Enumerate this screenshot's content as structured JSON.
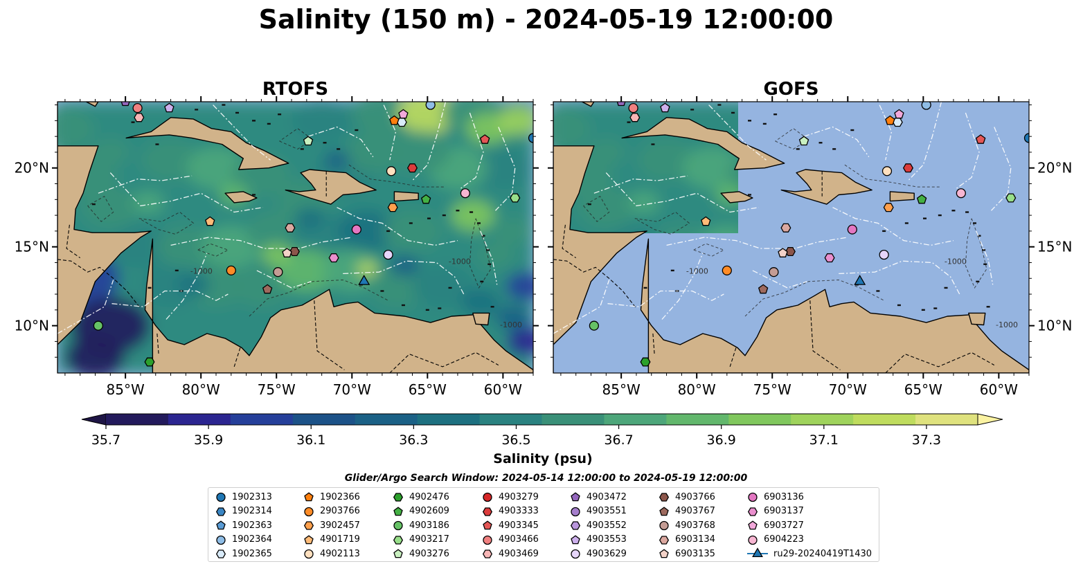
{
  "title": "Salinity (150 m) - 2024-05-19 12:00:00",
  "panels": [
    {
      "title": "RTOFS",
      "shows_field": true
    },
    {
      "title": "GOFS",
      "shows_field": "partial"
    }
  ],
  "map": {
    "lon_range": [
      -89.5,
      -58.0
    ],
    "lat_range": [
      7.0,
      24.2
    ],
    "lon_ticks": [
      {
        "value": -85,
        "label": "85°W"
      },
      {
        "value": -80,
        "label": "80°W"
      },
      {
        "value": -75,
        "label": "75°W"
      },
      {
        "value": -70,
        "label": "70°W"
      },
      {
        "value": -65,
        "label": "65°W"
      },
      {
        "value": -60,
        "label": "60°W"
      }
    ],
    "lat_ticks": [
      {
        "value": 10,
        "label": "10°N"
      },
      {
        "value": 15,
        "label": "15°N"
      },
      {
        "value": 20,
        "label": "20°N"
      }
    ],
    "contour_label": "-1000",
    "colors": {
      "ocean": "#95b4e0",
      "land": "#d1b38a",
      "eez": "#ffffff"
    }
  },
  "colorbar": {
    "label": "Salinity (psu)",
    "ticks": [
      "35.7",
      "35.9",
      "36.1",
      "36.3",
      "36.5",
      "36.7",
      "36.9",
      "37.1",
      "37.3"
    ],
    "min": 35.7,
    "max": 37.4,
    "colors": [
      "#231a5c",
      "#2b2590",
      "#253f9a",
      "#1c5288",
      "#1b6186",
      "#1d7080",
      "#2a8280",
      "#3a9078",
      "#4da67a",
      "#62b76c",
      "#80c75d",
      "#9fd35c",
      "#bfdc5e",
      "#dfe27e"
    ],
    "under_color": "#1e1545",
    "over_color": "#fbf3a2"
  },
  "legend": {
    "title": "Glider/Argo Search Window: 2024-05-14 12:00:00 to 2024-05-19 12:00:00",
    "items": [
      {
        "id": "1902313",
        "marker": "circle",
        "color": "#1f77b4",
        "lon": -58.0,
        "lat": 21.9
      },
      {
        "id": "1902314",
        "marker": "hexagon",
        "color": "#3a86c4",
        "lon": -88.0,
        "lat": 24.5
      },
      {
        "id": "1902363",
        "marker": "pentagon",
        "color": "#5a9bd4",
        "lon": -87.0,
        "lat": 24.5
      },
      {
        "id": "1902364",
        "marker": "circle",
        "color": "#8fbde6",
        "lon": -64.8,
        "lat": 24.0
      },
      {
        "id": "1902365",
        "marker": "hexagon",
        "color": "#d9ebf9",
        "lon": -66.7,
        "lat": 22.9
      },
      {
        "id": "1902366",
        "marker": "pentagon",
        "color": "#ff7f0e",
        "lon": -67.2,
        "lat": 23.0
      },
      {
        "id": "2903766",
        "marker": "circle",
        "color": "#ff8c27",
        "lon": -78.0,
        "lat": 13.5
      },
      {
        "id": "3902457",
        "marker": "hexagon",
        "color": "#ffa04d",
        "lon": -67.3,
        "lat": 17.5
      },
      {
        "id": "4901719",
        "marker": "pentagon",
        "color": "#ffbb78",
        "lon": -79.4,
        "lat": 16.6
      },
      {
        "id": "4902113",
        "marker": "circle",
        "color": "#ffe0bf",
        "lon": -67.4,
        "lat": 19.8
      },
      {
        "id": "4902476",
        "marker": "hexagon",
        "color": "#2ca02c",
        "lon": -83.4,
        "lat": 7.7
      },
      {
        "id": "4902609",
        "marker": "pentagon",
        "color": "#44b044",
        "lon": -65.1,
        "lat": 18.0
      },
      {
        "id": "4903186",
        "marker": "circle",
        "color": "#66c266",
        "lon": -86.8,
        "lat": 10.0
      },
      {
        "id": "4903217",
        "marker": "hexagon",
        "color": "#98df8a",
        "lon": -59.2,
        "lat": 18.1
      },
      {
        "id": "4903276",
        "marker": "pentagon",
        "color": "#c9f0c0",
        "lon": -72.9,
        "lat": 21.7
      },
      {
        "id": "4903279",
        "marker": "circle",
        "color": "#d62728",
        "lon": -86.0,
        "lat": 24.6
      },
      {
        "id": "4903333",
        "marker": "hexagon",
        "color": "#dc3c3c",
        "lon": -66.0,
        "lat": 20.0
      },
      {
        "id": "4903345",
        "marker": "pentagon",
        "color": "#e45756",
        "lon": -61.2,
        "lat": 21.8
      },
      {
        "id": "4903466",
        "marker": "circle",
        "color": "#f08080",
        "lon": -84.2,
        "lat": 23.8
      },
      {
        "id": "4903469",
        "marker": "hexagon",
        "color": "#f7b6b6",
        "lon": -84.1,
        "lat": 23.2
      },
      {
        "id": "4903472",
        "marker": "pentagon",
        "color": "#9467bd",
        "lon": -85.0,
        "lat": 24.2
      },
      {
        "id": "4903551",
        "marker": "circle",
        "color": "#a57ecc",
        "lon": -85.6,
        "lat": 24.6
      },
      {
        "id": "4903552",
        "marker": "hexagon",
        "color": "#b996dc",
        "lon": -85.0,
        "lat": 24.6
      },
      {
        "id": "4903553",
        "marker": "pentagon",
        "color": "#cdb0ec",
        "lon": -82.1,
        "lat": 23.8
      },
      {
        "id": "4903629",
        "marker": "circle",
        "color": "#e6d5fa",
        "lon": -67.6,
        "lat": 14.5
      },
      {
        "id": "4903766",
        "marker": "hexagon",
        "color": "#8c564b",
        "lon": -73.8,
        "lat": 14.7
      },
      {
        "id": "4903767",
        "marker": "pentagon",
        "color": "#9e6a5e",
        "lon": -75.6,
        "lat": 12.3
      },
      {
        "id": "4903768",
        "marker": "circle",
        "color": "#c49c94",
        "lon": -74.9,
        "lat": 13.4
      },
      {
        "id": "6903134",
        "marker": "hexagon",
        "color": "#dba8a0",
        "lon": -74.1,
        "lat": 16.2
      },
      {
        "id": "6903135",
        "marker": "pentagon",
        "color": "#f3d2c8",
        "lon": -74.3,
        "lat": 14.6
      },
      {
        "id": "6903136",
        "marker": "circle",
        "color": "#e377c2",
        "lon": -69.7,
        "lat": 16.1
      },
      {
        "id": "6903137",
        "marker": "hexagon",
        "color": "#ea8fce",
        "lon": -71.2,
        "lat": 14.3
      },
      {
        "id": "6903727",
        "marker": "pentagon",
        "color": "#f2a8da",
        "lon": -66.6,
        "lat": 23.4
      },
      {
        "id": "6904223",
        "marker": "circle",
        "color": "#f7b6d2",
        "lon": -62.5,
        "lat": 18.4
      },
      {
        "id": "ru29-20240419T1430",
        "marker": "triangle",
        "color": "#1f77b4",
        "lon": -69.2,
        "lat": 12.8
      }
    ]
  }
}
